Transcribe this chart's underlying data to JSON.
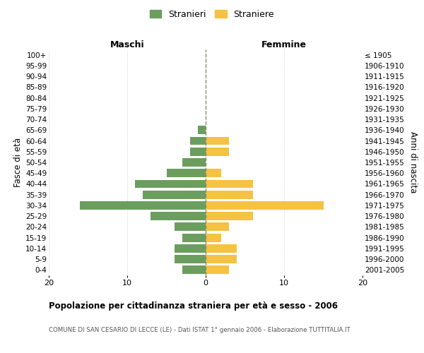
{
  "age_groups": [
    "100+",
    "95-99",
    "90-94",
    "85-89",
    "80-84",
    "75-79",
    "70-74",
    "65-69",
    "60-64",
    "55-59",
    "50-54",
    "45-49",
    "40-44",
    "35-39",
    "30-34",
    "25-29",
    "20-24",
    "15-19",
    "10-14",
    "5-9",
    "0-4"
  ],
  "birth_years": [
    "≤ 1905",
    "1906-1910",
    "1911-1915",
    "1916-1920",
    "1921-1925",
    "1926-1930",
    "1931-1935",
    "1936-1940",
    "1941-1945",
    "1946-1950",
    "1951-1955",
    "1956-1960",
    "1961-1965",
    "1966-1970",
    "1971-1975",
    "1976-1980",
    "1981-1985",
    "1986-1990",
    "1991-1995",
    "1996-2000",
    "2001-2005"
  ],
  "males": [
    0,
    0,
    0,
    0,
    0,
    0,
    0,
    1,
    2,
    2,
    3,
    5,
    9,
    8,
    16,
    7,
    4,
    3,
    4,
    4,
    3
  ],
  "females": [
    0,
    0,
    0,
    0,
    0,
    0,
    0,
    0,
    3,
    3,
    0,
    2,
    6,
    6,
    15,
    6,
    3,
    2,
    4,
    4,
    3
  ],
  "male_color": "#6b9e5e",
  "female_color": "#f5c242",
  "grid_color": "#d0d0d0",
  "center_line_color": "#8b8b6b",
  "bg_color": "#ffffff",
  "title": "Popolazione per cittadinanza straniera per età e sesso - 2006",
  "subtitle": "COMUNE DI SAN CESARIO DI LECCE (LE) - Dati ISTAT 1° gennaio 2006 - Elaborazione TUTTITALIA.IT",
  "ylabel_left": "Fasce di età",
  "ylabel_right": "Anni di nascita",
  "xlabel_left": "Maschi",
  "xlabel_right": "Femmine",
  "legend_male": "Stranieri",
  "legend_female": "Straniere",
  "xlim": 20
}
